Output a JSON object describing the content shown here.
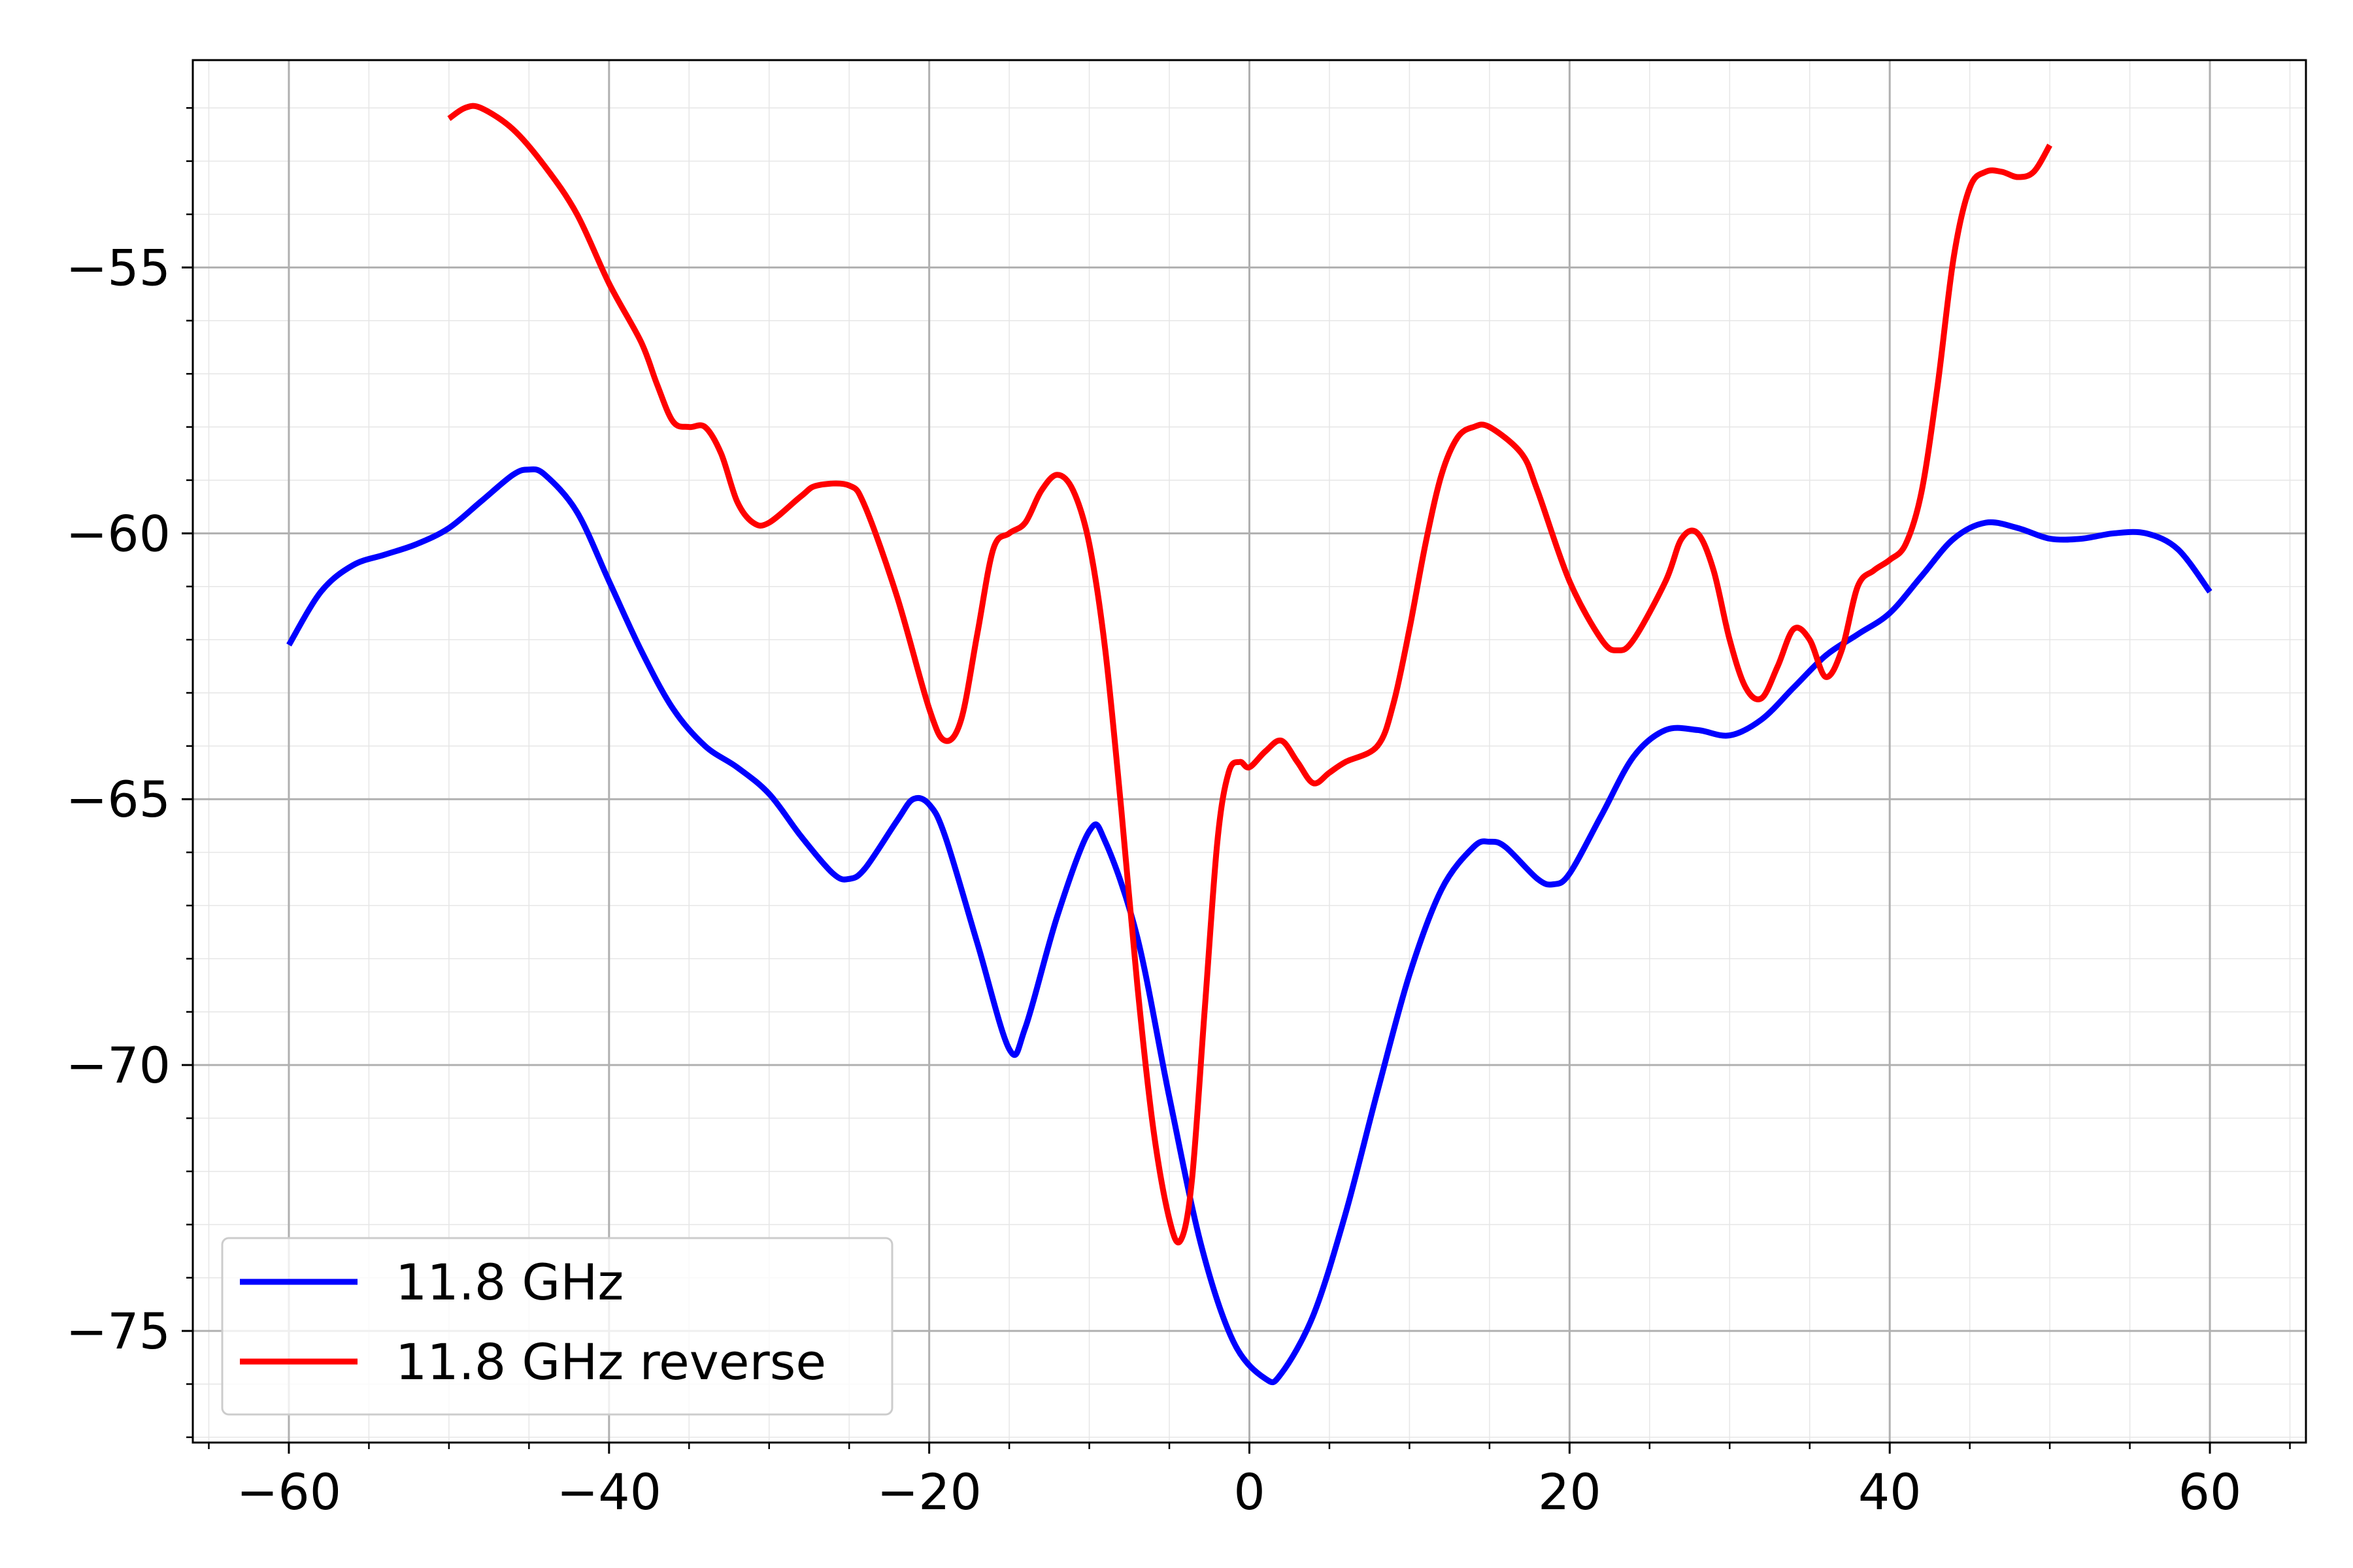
{
  "chart_data": {
    "type": "line",
    "title": "",
    "xlabel": "",
    "ylabel": "",
    "xlim": [
      -66,
      66
    ],
    "ylim": [
      -77.1,
      -51.1
    ],
    "x_ticks": [
      -60,
      -40,
      -20,
      0,
      20,
      40,
      60
    ],
    "x_tick_labels": [
      "−60",
      "−40",
      "−20",
      "0",
      "20",
      "40",
      "60"
    ],
    "y_ticks": [
      -55,
      -60,
      -65,
      -70,
      -75
    ],
    "y_tick_labels": [
      "−55",
      "−60",
      "−65",
      "−70",
      "−75"
    ],
    "grid": {
      "major": true,
      "minor": true
    },
    "legend": {
      "location": "lower left",
      "entries": [
        "11.8 GHz",
        "11.8 GHz reverse"
      ]
    },
    "series": [
      {
        "name": "11.8 GHz",
        "color": "#0000ff",
        "points": [
          [
            -60,
            -62.1
          ],
          [
            -58,
            -61.1
          ],
          [
            -56,
            -60.6
          ],
          [
            -54,
            -60.4
          ],
          [
            -52,
            -60.2
          ],
          [
            -50,
            -59.9
          ],
          [
            -48,
            -59.4
          ],
          [
            -46,
            -58.9
          ],
          [
            -45,
            -58.8
          ],
          [
            -44,
            -58.9
          ],
          [
            -42,
            -59.6
          ],
          [
            -40,
            -60.9
          ],
          [
            -38,
            -62.2
          ],
          [
            -36,
            -63.3
          ],
          [
            -34,
            -64.0
          ],
          [
            -32,
            -64.4
          ],
          [
            -30,
            -64.9
          ],
          [
            -28,
            -65.7
          ],
          [
            -26,
            -66.4
          ],
          [
            -25,
            -66.5
          ],
          [
            -24,
            -66.3
          ],
          [
            -22,
            -65.4
          ],
          [
            -21,
            -65.0
          ],
          [
            -20,
            -65.1
          ],
          [
            -19,
            -65.7
          ],
          [
            -17,
            -67.7
          ],
          [
            -15,
            -69.7
          ],
          [
            -14,
            -69.3
          ],
          [
            -12,
            -67.2
          ],
          [
            -10,
            -65.6
          ],
          [
            -9,
            -65.8
          ],
          [
            -7,
            -67.6
          ],
          [
            -5,
            -70.6
          ],
          [
            -3,
            -73.4
          ],
          [
            -1,
            -75.2
          ],
          [
            1,
            -75.9
          ],
          [
            2,
            -75.8
          ],
          [
            4,
            -74.7
          ],
          [
            6,
            -72.8
          ],
          [
            8,
            -70.5
          ],
          [
            10,
            -68.3
          ],
          [
            12,
            -66.7
          ],
          [
            14,
            -65.9
          ],
          [
            15,
            -65.8
          ],
          [
            16,
            -65.9
          ],
          [
            18,
            -66.5
          ],
          [
            19,
            -66.6
          ],
          [
            20,
            -66.4
          ],
          [
            22,
            -65.3
          ],
          [
            24,
            -64.2
          ],
          [
            26,
            -63.7
          ],
          [
            28,
            -63.7
          ],
          [
            30,
            -63.8
          ],
          [
            32,
            -63.5
          ],
          [
            34,
            -62.9
          ],
          [
            36,
            -62.3
          ],
          [
            38,
            -61.9
          ],
          [
            40,
            -61.5
          ],
          [
            42,
            -60.8
          ],
          [
            44,
            -60.1
          ],
          [
            46,
            -59.8
          ],
          [
            48,
            -59.9
          ],
          [
            50,
            -60.1
          ],
          [
            52,
            -60.1
          ],
          [
            54,
            -60.0
          ],
          [
            56,
            -60.0
          ],
          [
            58,
            -60.3
          ],
          [
            60,
            -61.1
          ]
        ]
      },
      {
        "name": "11.8 GHz reverse",
        "color": "#ff0000",
        "points": [
          [
            -50,
            -52.2
          ],
          [
            -49,
            -52.0
          ],
          [
            -48,
            -52.0
          ],
          [
            -46,
            -52.4
          ],
          [
            -44,
            -53.1
          ],
          [
            -42,
            -54.0
          ],
          [
            -40,
            -55.3
          ],
          [
            -38,
            -56.4
          ],
          [
            -37,
            -57.2
          ],
          [
            -36,
            -57.9
          ],
          [
            -35,
            -58.0
          ],
          [
            -34,
            -58.0
          ],
          [
            -33,
            -58.5
          ],
          [
            -32,
            -59.4
          ],
          [
            -31,
            -59.8
          ],
          [
            -30,
            -59.8
          ],
          [
            -28,
            -59.3
          ],
          [
            -27,
            -59.1
          ],
          [
            -25,
            -59.1
          ],
          [
            -24,
            -59.5
          ],
          [
            -22,
            -61.2
          ],
          [
            -20,
            -63.3
          ],
          [
            -19,
            -63.9
          ],
          [
            -18,
            -63.5
          ],
          [
            -17,
            -61.9
          ],
          [
            -16,
            -60.3
          ],
          [
            -15,
            -60.0
          ],
          [
            -14,
            -59.8
          ],
          [
            -13,
            -59.2
          ],
          [
            -12,
            -58.9
          ],
          [
            -11,
            -59.2
          ],
          [
            -10,
            -60.2
          ],
          [
            -9,
            -62.2
          ],
          [
            -8,
            -65.2
          ],
          [
            -7,
            -68.5
          ],
          [
            -6,
            -71.2
          ],
          [
            -5,
            -72.9
          ],
          [
            -4.3,
            -73.3
          ],
          [
            -3.6,
            -72.2
          ],
          [
            -2.8,
            -69.0
          ],
          [
            -2,
            -65.8
          ],
          [
            -1.3,
            -64.5
          ],
          [
            -0.6,
            -64.3
          ],
          [
            0,
            -64.4
          ],
          [
            1,
            -64.1
          ],
          [
            2,
            -63.9
          ],
          [
            3,
            -64.3
          ],
          [
            4,
            -64.7
          ],
          [
            5,
            -64.5
          ],
          [
            6,
            -64.3
          ],
          [
            8,
            -64.0
          ],
          [
            9,
            -63.2
          ],
          [
            10,
            -61.8
          ],
          [
            11,
            -60.2
          ],
          [
            12,
            -58.9
          ],
          [
            13,
            -58.2
          ],
          [
            14,
            -58.0
          ],
          [
            15,
            -58.0
          ],
          [
            17,
            -58.5
          ],
          [
            18,
            -59.2
          ],
          [
            20,
            -60.9
          ],
          [
            22,
            -62.0
          ],
          [
            23,
            -62.2
          ],
          [
            24,
            -62.0
          ],
          [
            26,
            -60.9
          ],
          [
            27,
            -60.1
          ],
          [
            28,
            -60.0
          ],
          [
            29,
            -60.7
          ],
          [
            30,
            -62.0
          ],
          [
            31,
            -62.9
          ],
          [
            32,
            -63.1
          ],
          [
            33,
            -62.5
          ],
          [
            34,
            -61.8
          ],
          [
            35,
            -62.0
          ],
          [
            36,
            -62.7
          ],
          [
            37,
            -62.2
          ],
          [
            38,
            -61.0
          ],
          [
            39,
            -60.7
          ],
          [
            40,
            -60.5
          ],
          [
            41,
            -60.2
          ],
          [
            42,
            -59.2
          ],
          [
            43,
            -57.2
          ],
          [
            44,
            -54.8
          ],
          [
            45,
            -53.5
          ],
          [
            46,
            -53.2
          ],
          [
            47,
            -53.2
          ],
          [
            48,
            -53.3
          ],
          [
            49,
            -53.2
          ],
          [
            50,
            -52.7
          ]
        ]
      }
    ]
  }
}
